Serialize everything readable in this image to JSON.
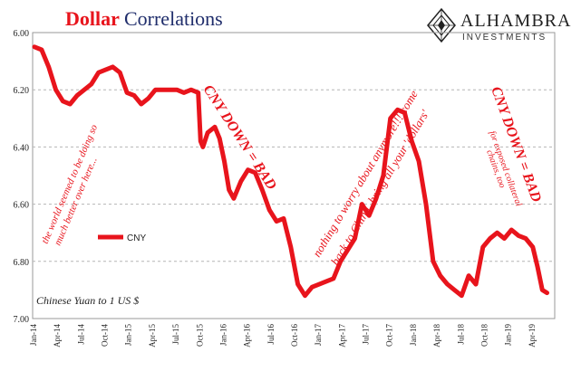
{
  "header": {
    "title_word1": "Dollar",
    "title_word2": "Correlations"
  },
  "logo": {
    "name": "ALHAMBRA",
    "subtitle": "INVESTMENTS",
    "icon": "alhambra-diamond-icon"
  },
  "chart_data": {
    "type": "line",
    "title": "Dollar Correlations",
    "subtitle": "Chinese Yuan to 1 US $",
    "ylim": [
      6.0,
      7.0
    ],
    "y_inverted": true,
    "y_ticks": [
      "6.00",
      "6.20",
      "6.40",
      "6.60",
      "6.80",
      "7.00"
    ],
    "x_ticks": [
      "Jan-14",
      "Apr-14",
      "Jul-14",
      "Oct-14",
      "Jan-15",
      "Apr-15",
      "Jul-15",
      "Oct-15",
      "Jan-16",
      "Apr-16",
      "Jul-16",
      "Oct-16",
      "Jan-17",
      "Apr-17",
      "Jul-17",
      "Oct-17",
      "Jan-18",
      "Apr-18",
      "Jul-18",
      "Oct-18",
      "Jan-19",
      "Apr-19"
    ],
    "grid": "horizontal dashed",
    "legend": {
      "placement": "middle-left",
      "entries": [
        "CNY"
      ]
    },
    "line_color": "#e8141c",
    "series": [
      {
        "name": "CNY",
        "x": [
          0,
          0.3,
          0.6,
          0.9,
          1.2,
          1.5,
          1.8,
          2.1,
          2.4,
          2.7,
          3.0,
          3.3,
          3.6,
          3.9,
          4.2,
          4.5,
          4.8,
          5.1,
          5.4,
          5.7,
          6.0,
          6.3,
          6.6,
          6.9,
          7.0,
          7.1,
          7.3,
          7.6,
          7.8,
          8.0,
          8.2,
          8.4,
          8.7,
          9.0,
          9.3,
          9.6,
          9.9,
          10.2,
          10.5,
          10.8,
          11.1,
          11.4,
          11.7,
          12.0,
          12.3,
          12.6,
          12.9,
          13.2,
          13.5,
          13.8,
          14.1,
          14.4,
          14.7,
          15.0,
          15.3,
          15.6,
          15.9,
          16.2,
          16.5,
          16.8,
          17.1,
          17.4,
          17.7,
          18.0,
          18.3,
          18.6,
          18.9,
          19.2,
          19.5,
          19.8,
          20.1,
          20.4,
          20.7,
          21.0,
          21.2,
          21.4,
          21.6
        ],
        "values": [
          6.05,
          6.06,
          6.12,
          6.2,
          6.24,
          6.25,
          6.22,
          6.2,
          6.18,
          6.14,
          6.13,
          6.12,
          6.14,
          6.21,
          6.22,
          6.25,
          6.23,
          6.2,
          6.2,
          6.2,
          6.2,
          6.21,
          6.2,
          6.21,
          6.38,
          6.4,
          6.35,
          6.33,
          6.37,
          6.45,
          6.55,
          6.58,
          6.52,
          6.48,
          6.49,
          6.55,
          6.62,
          6.66,
          6.65,
          6.75,
          6.88,
          6.92,
          6.89,
          6.88,
          6.87,
          6.86,
          6.8,
          6.76,
          6.72,
          6.6,
          6.64,
          6.58,
          6.5,
          6.3,
          6.27,
          6.28,
          6.38,
          6.45,
          6.6,
          6.8,
          6.85,
          6.88,
          6.9,
          6.92,
          6.85,
          6.88,
          6.75,
          6.72,
          6.7,
          6.72,
          6.69,
          6.71,
          6.72,
          6.75,
          6.82,
          6.9,
          6.91
        ]
      }
    ],
    "annotations": [
      {
        "text": "the world seemed to be doing so",
        "color": "#e8141c"
      },
      {
        "text": "much better over here...",
        "color": "#e8141c"
      },
      {
        "text": "CNY DOWN = BAD",
        "color": "#e8141c"
      },
      {
        "text": "nothing to worry about anymore!!! come",
        "color": "#e8141c"
      },
      {
        "text": "back to China, bring all your 'dollars'",
        "color": "#e8141c"
      },
      {
        "text": "CNY DOWN = BAD",
        "color": "#e8141c"
      },
      {
        "text": "for exposed collateral",
        "color": "#e8141c"
      },
      {
        "text": "chains, too",
        "color": "#e8141c"
      }
    ]
  }
}
